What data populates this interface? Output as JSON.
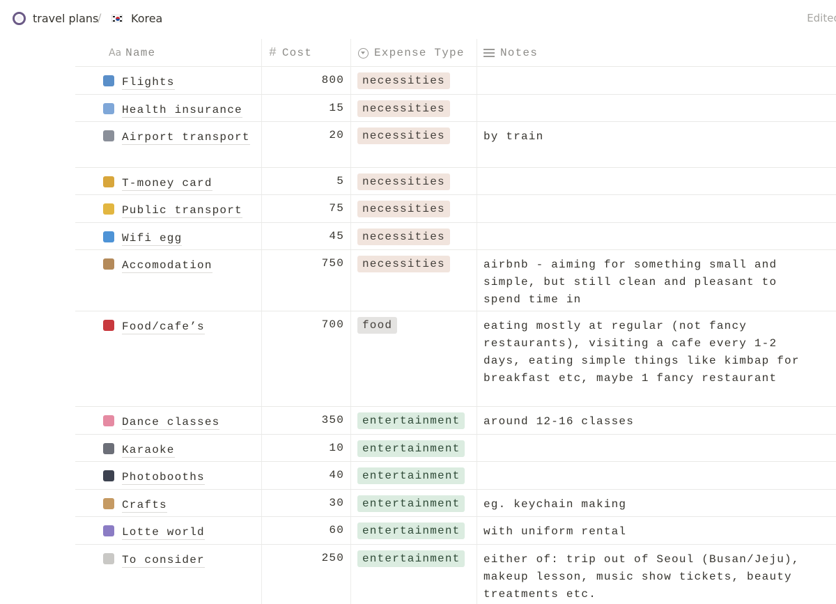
{
  "breadcrumb": {
    "workspace": "travel plans",
    "separator": "/",
    "page": "Korea",
    "edited": "Edited"
  },
  "columns": {
    "name": "Name",
    "name_icon": "Aa",
    "cost": "Cost",
    "cost_icon": "#",
    "type": "Expense Type",
    "notes": "Notes"
  },
  "rows": [
    {
      "name": "Flights",
      "icon": "airplane",
      "cost": "800",
      "type": "necessities",
      "notes": ""
    },
    {
      "name": "Health insurance",
      "icon": "hospital",
      "cost": "15",
      "type": "necessities",
      "notes": ""
    },
    {
      "name": "Airport transport",
      "icon": "train",
      "cost": "20",
      "type": "necessities",
      "notes": "by train"
    },
    {
      "name": "T-money card",
      "icon": "credit-card",
      "cost": "5",
      "type": "necessities",
      "notes": ""
    },
    {
      "name": "Public transport",
      "icon": "bus",
      "cost": "75",
      "type": "necessities",
      "notes": ""
    },
    {
      "name": "Wifi egg",
      "icon": "globe",
      "cost": "45",
      "type": "necessities",
      "notes": ""
    },
    {
      "name": "Accomodation",
      "icon": "hotel",
      "cost": "750",
      "type": "necessities",
      "notes": "airbnb - aiming for something small and simple, but still clean and pleasant to spend time in"
    },
    {
      "name": "Food/cafe’s",
      "icon": "bento",
      "cost": "700",
      "type": "food",
      "notes": "eating mostly at regular (not fancy restaurants), visiting a cafe every 1-2 days, eating simple things like kimbap for breakfast etc, maybe 1 fancy restaurant"
    },
    {
      "name": "Dance classes",
      "icon": "ballet-shoes",
      "cost": "350",
      "type": "entertainment",
      "notes": "around 12-16 classes"
    },
    {
      "name": "Karaoke",
      "icon": "microphone",
      "cost": "10",
      "type": "entertainment",
      "notes": ""
    },
    {
      "name": "Photobooths",
      "icon": "camera-flash",
      "cost": "40",
      "type": "entertainment",
      "notes": ""
    },
    {
      "name": "Crafts",
      "icon": "crafter",
      "cost": "30",
      "type": "entertainment",
      "notes": "eg. keychain making"
    },
    {
      "name": "Lotte world",
      "icon": "ferris-wheel",
      "cost": "60",
      "type": "entertainment",
      "notes": "with uniform rental"
    },
    {
      "name": "To consider",
      "icon": "question-mark",
      "cost": "250",
      "type": "entertainment",
      "notes": "either of: trip out of Seoul (Busan/Jeju), makeup lesson, music show tickets, beauty treatments etc."
    }
  ],
  "tag_colors": {
    "necessities": "#f1e4dd",
    "food": "#e4e3e1",
    "entertainment": "#dbece0"
  }
}
